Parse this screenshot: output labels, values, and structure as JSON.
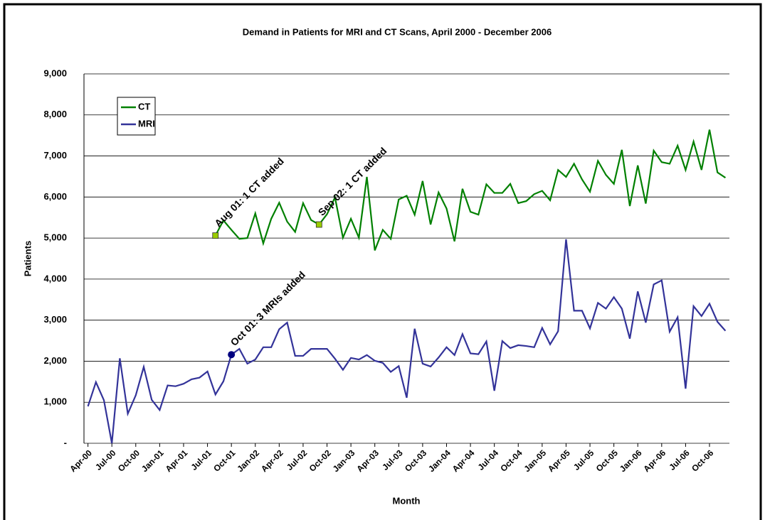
{
  "chart_data": {
    "type": "line",
    "title": "Demand in Patients for MRI and CT Scans, April 2000 - December 2006",
    "x_label": "Month",
    "y_label": "Patients",
    "categories": [
      "Apr-00",
      null,
      null,
      "Jul-00",
      null,
      null,
      "Oct-00",
      null,
      null,
      "Jan-01",
      null,
      null,
      "Apr-01",
      null,
      null,
      "Jul-01",
      null,
      null,
      "Oct-01",
      null,
      null,
      "Jan-02",
      null,
      null,
      "Apr-02",
      null,
      null,
      "Jul-02",
      null,
      null,
      "Oct-02",
      null,
      null,
      "Jan-03",
      null,
      null,
      "Apr-03",
      null,
      null,
      "Jul-03",
      null,
      null,
      "Oct-03",
      null,
      null,
      "Jan-04",
      null,
      null,
      "Apr-04",
      null,
      null,
      "Jul-04",
      null,
      null,
      "Oct-04",
      null,
      null,
      "Jan-05",
      null,
      null,
      "Apr-05",
      null,
      null,
      "Jul-05",
      null,
      null,
      "Oct-05",
      null,
      null,
      "Jan-06",
      null,
      null,
      "Apr-06",
      null,
      null,
      "Jul-06",
      null,
      null,
      "Oct-06",
      null,
      null
    ],
    "series": [
      {
        "name": "CT",
        "color": "#008000",
        "values": [
          null,
          null,
          null,
          null,
          null,
          null,
          null,
          null,
          null,
          null,
          null,
          null,
          null,
          null,
          null,
          null,
          5060,
          5430,
          5200,
          4980,
          5000,
          5600,
          4870,
          5470,
          5860,
          5400,
          5150,
          5850,
          5440,
          5330,
          5580,
          5990,
          5010,
          5470,
          5010,
          6490,
          4700,
          5200,
          4980,
          5940,
          6030,
          5570,
          6390,
          5330,
          6110,
          5720,
          4920,
          6200,
          5640,
          5570,
          6310,
          6100,
          6100,
          6320,
          5850,
          5900,
          6070,
          6150,
          5920,
          6660,
          6490,
          6810,
          6430,
          6130,
          6880,
          6540,
          6320,
          7150,
          5780,
          6770,
          5840,
          7130,
          6850,
          6810,
          7250,
          6660,
          7350,
          6660,
          7640,
          6600,
          6470
        ]
      },
      {
        "name": "MRI",
        "color": "#333399",
        "values": [
          900,
          1490,
          1050,
          0,
          2070,
          720,
          1170,
          1860,
          1060,
          810,
          1410,
          1390,
          1450,
          1560,
          1600,
          1750,
          1190,
          1510,
          2160,
          2300,
          1940,
          2040,
          2340,
          2340,
          2780,
          2940,
          2130,
          2130,
          2300,
          2300,
          2300,
          2060,
          1790,
          2080,
          2040,
          2150,
          2010,
          1960,
          1740,
          1880,
          1110,
          2790,
          1940,
          1870,
          2090,
          2340,
          2150,
          2660,
          2190,
          2170,
          2480,
          1280,
          2490,
          2320,
          2390,
          2370,
          2340,
          2810,
          2410,
          2730,
          4970,
          3230,
          3230,
          2800,
          3420,
          3280,
          3560,
          3280,
          2550,
          3700,
          2940,
          3870,
          3970,
          2720,
          3070,
          1330,
          3340,
          3100,
          3400,
          2960,
          2740
        ]
      }
    ],
    "annotations": [
      "Aug 01: 1 CT added",
      "Sep 02: 1 CT added",
      "Oct 01: 3 MRIs added"
    ],
    "ylim": [
      0,
      9000
    ],
    "yticks": [
      {
        "value": 0,
        "label": "-"
      },
      {
        "value": 1000,
        "label": "1,000"
      },
      {
        "value": 2000,
        "label": "2,000"
      },
      {
        "value": 3000,
        "label": "3,000"
      },
      {
        "value": 4000,
        "label": "4,000"
      },
      {
        "value": 5000,
        "label": "5,000"
      },
      {
        "value": 6000,
        "label": "6,000"
      },
      {
        "value": 7000,
        "label": "7,000"
      },
      {
        "value": 8000,
        "label": "8,000"
      },
      {
        "value": 9000,
        "label": "9,000"
      }
    ],
    "grid": true,
    "legend": "upper left"
  }
}
